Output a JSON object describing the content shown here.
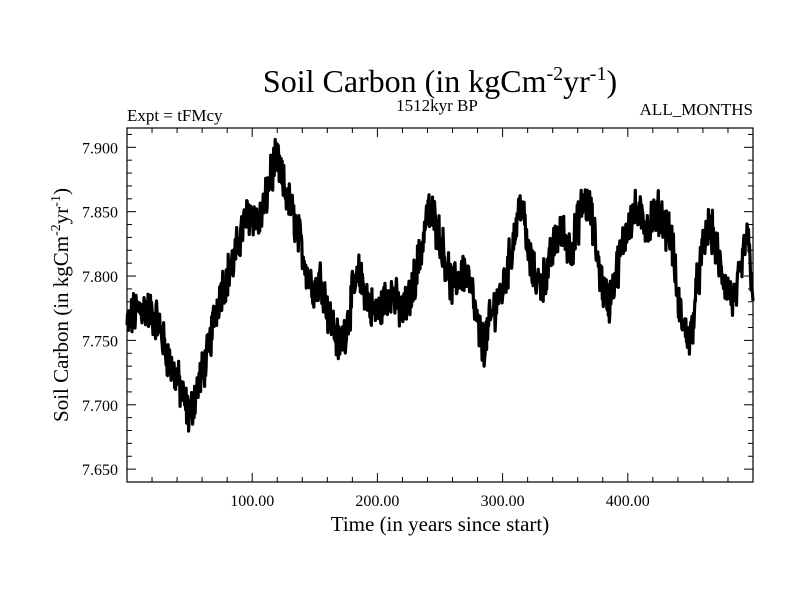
{
  "chart_data": {
    "type": "line",
    "title": "Soil Carbon (in kgCm",
    "title_sup1": "-2",
    "title_mid": "yr",
    "title_sup2": "-1",
    "title_end": ")",
    "subtitle_left": "Expt = tFMcy",
    "subtitle_center": "1512kyr BP",
    "subtitle_right": "ALL_MONTHS",
    "xlabel": "Time (in years since start)",
    "ylabel": "Soil Carbon (in kgCm",
    "ylabel_sup1": "-2",
    "ylabel_mid": "yr",
    "ylabel_sup2": "-1",
    "ylabel_end": ")",
    "xlim": [
      0,
      500
    ],
    "ylim": [
      7.64,
      7.915
    ],
    "x_ticks": [
      100,
      200,
      300,
      400
    ],
    "x_tick_labels": [
      "100.00",
      "200.00",
      "300.00",
      "400.00"
    ],
    "y_ticks": [
      7.65,
      7.7,
      7.75,
      7.8,
      7.85,
      7.9
    ],
    "y_tick_labels": [
      "7.650",
      "7.700",
      "7.750",
      "7.800",
      "7.850",
      "7.900"
    ],
    "line_color": "#000000",
    "series": [
      {
        "x": [
          0,
          5,
          10,
          15,
          20,
          25,
          30,
          35,
          40,
          45,
          50,
          55,
          60,
          65,
          70,
          75,
          80,
          85,
          90,
          95,
          100,
          105,
          110,
          115,
          120,
          125,
          130,
          135,
          140,
          145,
          150,
          155,
          160,
          165,
          170,
          175,
          180,
          185,
          190,
          195,
          200,
          205,
          210,
          215,
          220,
          225,
          230,
          235,
          240,
          245,
          250,
          255,
          260,
          265,
          270,
          275,
          280,
          285,
          290,
          295,
          300,
          305,
          310,
          315,
          320,
          325,
          330,
          335,
          340,
          345,
          350,
          355,
          360,
          365,
          370,
          375,
          380,
          385,
          390,
          395,
          400,
          405,
          410,
          415,
          420,
          425,
          430,
          435,
          440,
          445,
          450,
          455,
          460,
          465,
          470,
          475,
          480,
          485,
          490,
          495,
          500
        ],
        "values": [
          7.76,
          7.77,
          7.775,
          7.775,
          7.77,
          7.765,
          7.745,
          7.73,
          7.72,
          7.705,
          7.69,
          7.71,
          7.725,
          7.74,
          7.77,
          7.79,
          7.8,
          7.81,
          7.83,
          7.845,
          7.85,
          7.84,
          7.855,
          7.88,
          7.89,
          7.87,
          7.855,
          7.84,
          7.82,
          7.8,
          7.79,
          7.8,
          7.775,
          7.76,
          7.745,
          7.76,
          7.785,
          7.8,
          7.79,
          7.775,
          7.77,
          7.78,
          7.79,
          7.78,
          7.77,
          7.78,
          7.8,
          7.82,
          7.85,
          7.845,
          7.83,
          7.81,
          7.79,
          7.8,
          7.805,
          7.79,
          7.76,
          7.745,
          7.765,
          7.78,
          7.79,
          7.81,
          7.835,
          7.86,
          7.82,
          7.8,
          7.795,
          7.8,
          7.82,
          7.835,
          7.83,
          7.82,
          7.84,
          7.86,
          7.85,
          7.82,
          7.79,
          7.78,
          7.8,
          7.82,
          7.84,
          7.85,
          7.845,
          7.84,
          7.845,
          7.85,
          7.84,
          7.83,
          7.78,
          7.76,
          7.75,
          7.79,
          7.82,
          7.84,
          7.825,
          7.8,
          7.79,
          7.78,
          7.8,
          7.835,
          7.79
        ]
      }
    ]
  }
}
